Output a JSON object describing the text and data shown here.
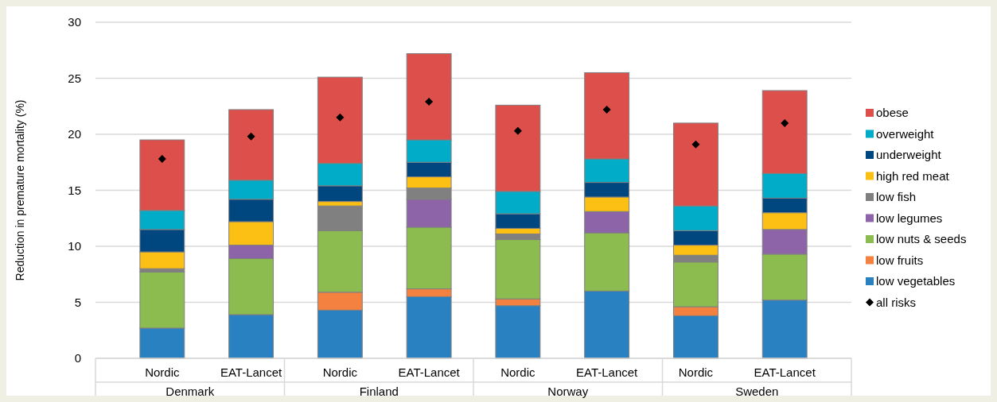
{
  "chart_data": {
    "type": "bar",
    "stacked": true,
    "ylabel": "Reduction in premature mortality (%)",
    "categories": [
      "Nordic",
      "EAT-Lancet",
      "Nordic",
      "EAT-Lancet",
      "Nordic",
      "EAT-Lancet",
      "Nordic",
      "EAT-Lancet"
    ],
    "annotations": [
      "Denmark",
      "Finland",
      "Norway",
      "Sweden"
    ],
    "ylim": [
      0,
      30
    ],
    "yticks": [
      0,
      5,
      10,
      15,
      20,
      25,
      30
    ],
    "grid": "y",
    "legend": "right",
    "series": [
      {
        "name": "low vegetables",
        "color": "#2a81c2",
        "values": [
          2.7,
          3.9,
          4.3,
          5.5,
          4.7,
          6.0,
          3.8,
          5.2
        ]
      },
      {
        "name": "low fruits",
        "color": "#f4813f",
        "values": [
          0,
          0,
          1.6,
          0.7,
          0.6,
          0,
          0.8,
          0
        ]
      },
      {
        "name": "low nuts & seeds",
        "color": "#8cbb4f",
        "values": [
          5.0,
          5.0,
          5.5,
          5.5,
          5.3,
          5.2,
          4.0,
          4.1
        ]
      },
      {
        "name": "low legumes",
        "color": "#8e64a8",
        "values": [
          0,
          1.2,
          0,
          2.5,
          0,
          1.9,
          0,
          2.2
        ]
      },
      {
        "name": "low fish",
        "color": "#808080",
        "values": [
          0.3,
          0,
          2.2,
          1.0,
          0.5,
          0,
          0.6,
          0
        ]
      },
      {
        "name": "high red meat",
        "color": "#fcbf13",
        "values": [
          1.5,
          2.1,
          0.4,
          1.0,
          0.5,
          1.3,
          0.9,
          1.5
        ]
      },
      {
        "name": "underweight",
        "color": "#00467f",
        "values": [
          2.0,
          2.0,
          1.4,
          1.3,
          1.3,
          1.3,
          1.3,
          1.3
        ]
      },
      {
        "name": "overweight",
        "color": "#01acc8",
        "values": [
          1.7,
          1.7,
          2.0,
          2.0,
          2.0,
          2.1,
          2.2,
          2.2
        ]
      },
      {
        "name": "obese",
        "color": "#dd4f4b",
        "values": [
          6.3,
          6.3,
          7.7,
          7.7,
          7.7,
          7.7,
          7.4,
          7.4
        ]
      },
      {
        "name": "all risks",
        "type": "scatter",
        "marker": "diamond",
        "color": "#000000",
        "values": [
          17.8,
          19.8,
          21.5,
          22.9,
          20.3,
          22.2,
          19.1,
          21.0
        ]
      }
    ]
  }
}
